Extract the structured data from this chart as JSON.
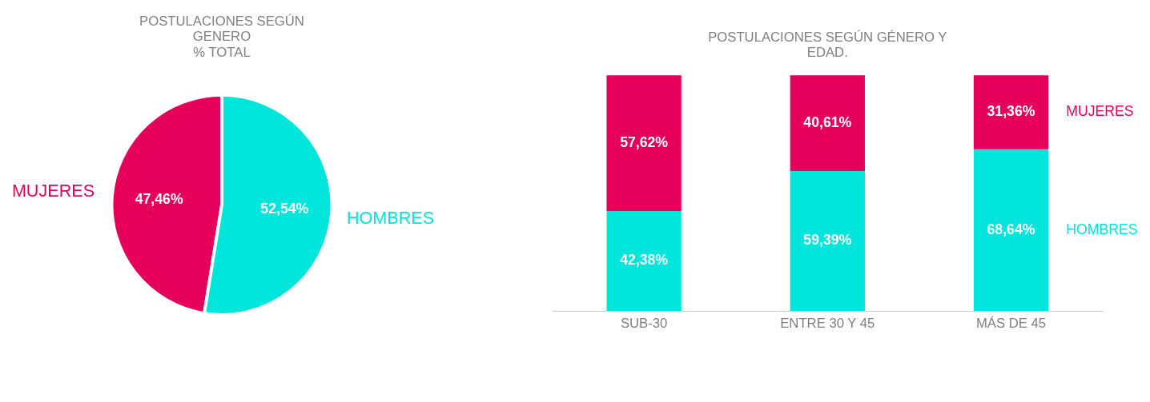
{
  "chart_data": [
    {
      "type": "pie",
      "title": "POSTULACIONES SEGÚN GENERO",
      "subtitle": "% TOTAL",
      "categories": [
        "MUJERES",
        "HOMBRES"
      ],
      "values": [
        47.46,
        52.54
      ],
      "colors": [
        "#e6005c",
        "#00e5dc"
      ],
      "value_labels": [
        "47,46%",
        "52,54%"
      ],
      "legend": false
    },
    {
      "type": "bar",
      "stacked": true,
      "title": "POSTULACIONES SEGÚN GÉNERO Y EDAD.",
      "categories": [
        "SUB-30",
        "ENTRE 30 Y 45",
        "MÁS DE 45"
      ],
      "legend": false,
      "series": [
        {
          "name": "HOMBRES",
          "color": "#00e5dc",
          "values": [
            42.38,
            59.39,
            68.64
          ],
          "value_labels": [
            "42,38%",
            "59,39%",
            "68,64%"
          ]
        },
        {
          "name": "MUJERES",
          "color": "#e6005c",
          "values": [
            57.62,
            40.61,
            31.36
          ],
          "value_labels": [
            "57,62%",
            "40,61%",
            "31,36%"
          ]
        }
      ]
    }
  ]
}
